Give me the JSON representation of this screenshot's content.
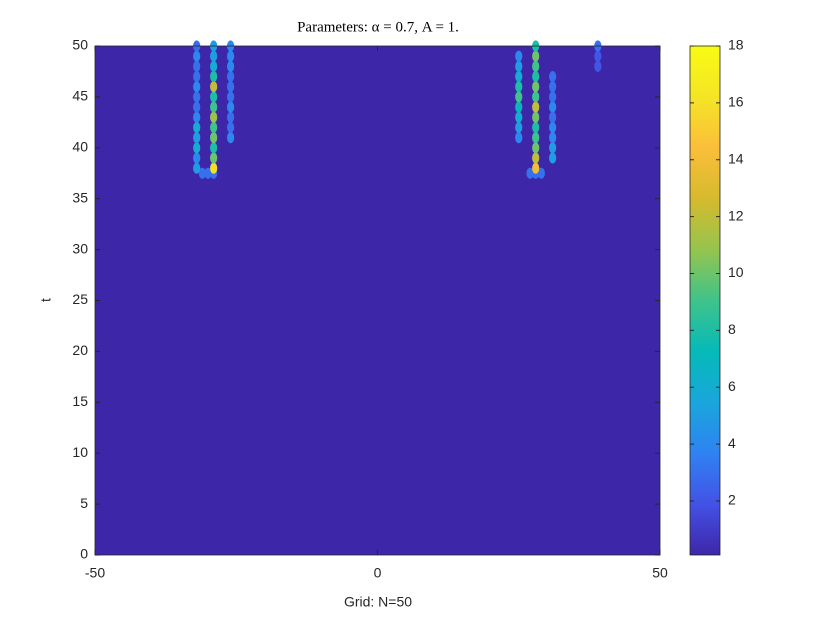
{
  "chart_data": {
    "type": "contour",
    "title": "Parameters: α = 0.7, A = 1.",
    "x_label": "Grid: N=50",
    "y_label": "t",
    "xlim": [
      -50,
      50
    ],
    "ylim": [
      0,
      50
    ],
    "xticks": [
      -50,
      0,
      50
    ],
    "yticks": [
      0,
      5,
      10,
      15,
      20,
      25,
      30,
      35,
      40,
      45,
      50
    ],
    "clim": [
      0.1,
      18
    ],
    "cticks": [
      2,
      4,
      6,
      8,
      10,
      12,
      14,
      16,
      18
    ],
    "colormap": [
      "#3e26a8",
      "#4352e6",
      "#2f82f2",
      "#1aa6dc",
      "#05bab8",
      "#3fc38a",
      "#95c44e",
      "#d6ba2d",
      "#fbbe3a",
      "#f5e525",
      "#f9fb14"
    ],
    "x": [
      -31,
      -30,
      -29,
      -29,
      -29,
      -29,
      -29,
      -29,
      -29,
      -29,
      -29,
      -29,
      -29,
      -29,
      -29,
      -29,
      -32,
      -32,
      -32,
      -32,
      -32,
      -32,
      -32,
      -32,
      -32,
      -32,
      -32,
      -32,
      -32,
      -26,
      -26,
      -26,
      -26,
      -26,
      -26,
      -26,
      -26,
      -26,
      -26,
      27,
      28,
      29,
      28,
      28,
      28,
      28,
      28,
      28,
      28,
      28,
      28,
      28,
      28,
      28,
      28,
      25,
      25,
      25,
      25,
      25,
      25,
      25,
      25,
      25,
      31,
      31,
      31,
      31,
      31,
      31,
      31,
      31,
      31,
      39,
      39,
      39
    ],
    "y": [
      37.5,
      37.5,
      37.5,
      38,
      39,
      40,
      41,
      42,
      43,
      44,
      45,
      46,
      47,
      48,
      49,
      50,
      38,
      39,
      40,
      41,
      42,
      43,
      44,
      45,
      46,
      47,
      48,
      49,
      50,
      41,
      42,
      43,
      44,
      45,
      46,
      47,
      48,
      49,
      50,
      37.5,
      37.5,
      37.5,
      38,
      39,
      40,
      41,
      42,
      43,
      44,
      45,
      46,
      47,
      48,
      49,
      50,
      41,
      42,
      43,
      44,
      45,
      46,
      47,
      48,
      49,
      39,
      40,
      41,
      42,
      43,
      44,
      45,
      46,
      47,
      48,
      49,
      50
    ],
    "values": [
      3,
      3,
      3,
      16,
      10,
      8,
      10,
      9,
      11,
      9,
      8,
      12,
      8,
      6,
      5,
      5,
      5,
      4,
      6,
      5,
      6,
      4,
      3,
      3,
      4,
      3,
      3,
      4,
      3,
      4,
      3,
      3,
      4,
      3,
      3,
      3,
      4,
      4,
      4,
      3,
      3,
      3,
      14,
      12,
      10,
      9,
      8,
      10,
      12,
      9,
      10,
      8,
      9,
      10,
      8,
      4,
      5,
      6,
      7,
      9,
      8,
      6,
      5,
      4,
      5,
      5,
      4,
      4,
      3,
      4,
      3,
      3,
      3,
      2,
      2,
      3
    ]
  }
}
